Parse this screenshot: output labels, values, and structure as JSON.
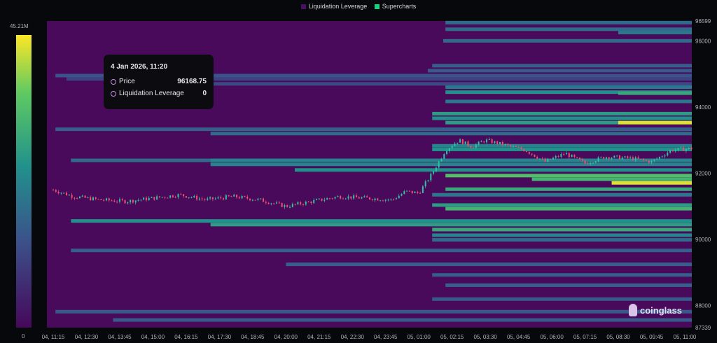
{
  "legend": [
    {
      "label": "Liquidation Leverage",
      "color": "#4a1066"
    },
    {
      "label": "Supercharts",
      "color": "#17d17e"
    }
  ],
  "colorbar": {
    "max_label": "45.21M",
    "min_label": "0",
    "colors": [
      "#46085a",
      "#3b528b",
      "#21918c",
      "#5ec962",
      "#fde725"
    ]
  },
  "tooltip": {
    "title": "4 Jan 2026, 11:20",
    "rows": [
      {
        "label": "Price",
        "value": "96168.75"
      },
      {
        "label": "Liquidation Leverage",
        "value": "0"
      }
    ]
  },
  "brand": "coinglass",
  "chart_data": {
    "type": "heatmap",
    "background_color": "#4a0a5c",
    "x_ticks": [
      "04, 11:15",
      "04, 12:30",
      "04, 13:45",
      "04, 15:00",
      "04, 16:15",
      "04, 17:30",
      "04, 18:45",
      "04, 20:00",
      "04, 21:15",
      "04, 22:30",
      "04, 23:45",
      "05, 01:00",
      "05, 02:15",
      "05, 03:30",
      "05, 04:45",
      "05, 06:00",
      "05, 07:15",
      "05, 08:30",
      "05, 09:45",
      "05, 11:00"
    ],
    "y_ticks": [
      "96599",
      "96000",
      "94000",
      "92000",
      "90000",
      "88000",
      "87339"
    ],
    "ylim": [
      87339,
      96599
    ],
    "xlim": [
      "04, 11:00",
      "05, 11:15"
    ],
    "bands": [
      {
        "price": 96550,
        "from": "05, 02:00",
        "level": 0.35
      },
      {
        "price": 96350,
        "from": "05, 02:00",
        "level": 0.35
      },
      {
        "price": 96250,
        "from": "05, 08:30",
        "level": 0.4
      },
      {
        "price": 96000,
        "from": "05, 01:55",
        "level": 0.35
      },
      {
        "price": 95250,
        "from": "05, 01:30",
        "level": 0.3
      },
      {
        "price": 95100,
        "from": "05, 01:20",
        "level": 0.28
      },
      {
        "price": 94950,
        "from": "04, 11:20",
        "level": 0.25
      },
      {
        "price": 94850,
        "from": "04, 11:45",
        "level": 0.2
      },
      {
        "price": 94700,
        "from": "04, 14:45",
        "level": 0.22
      },
      {
        "price": 94600,
        "from": "05, 02:00",
        "level": 0.4
      },
      {
        "price": 94450,
        "from": "05, 02:00",
        "level": 0.5
      },
      {
        "price": 94420,
        "from": "05, 08:30",
        "level": 0.6
      },
      {
        "price": 94170,
        "from": "05, 02:00",
        "level": 0.4
      },
      {
        "price": 93800,
        "from": "05, 01:30",
        "level": 0.55
      },
      {
        "price": 93660,
        "from": "05, 01:30",
        "level": 0.5
      },
      {
        "price": 93530,
        "from": "05, 02:00",
        "level": 0.55
      },
      {
        "price": 93530,
        "from": "05, 08:30",
        "level": 0.95
      },
      {
        "price": 93330,
        "from": "04, 11:20",
        "level": 0.3
      },
      {
        "price": 93200,
        "from": "04, 17:10",
        "level": 0.35
      },
      {
        "price": 92830,
        "from": "05, 01:30",
        "level": 0.45
      },
      {
        "price": 92720,
        "from": "05, 01:30",
        "level": 0.5
      },
      {
        "price": 92390,
        "from": "04, 11:55",
        "level": 0.35
      },
      {
        "price": 92390,
        "from": "04, 17:10",
        "level": 0.45
      },
      {
        "price": 92270,
        "from": "04, 17:10",
        "level": 0.45
      },
      {
        "price": 92100,
        "from": "04, 20:20",
        "level": 0.5
      },
      {
        "price": 91930,
        "from": "05, 02:00",
        "level": 0.7
      },
      {
        "price": 91820,
        "from": "05, 05:15",
        "level": 0.65
      },
      {
        "price": 91710,
        "from": "05, 08:15",
        "level": 0.95
      },
      {
        "price": 91520,
        "from": "05, 02:00",
        "level": 0.6
      },
      {
        "price": 91350,
        "from": "05, 01:30",
        "level": 0.4
      },
      {
        "price": 91040,
        "from": "05, 01:30",
        "level": 0.55
      },
      {
        "price": 90930,
        "from": "05, 02:00",
        "level": 0.65
      },
      {
        "price": 90560,
        "from": "04, 11:55",
        "level": 0.5
      },
      {
        "price": 90450,
        "from": "04, 17:10",
        "level": 0.55
      },
      {
        "price": 90300,
        "from": "05, 01:30",
        "level": 0.6
      },
      {
        "price": 90130,
        "from": "05, 01:30",
        "level": 0.45
      },
      {
        "price": 89990,
        "from": "05, 01:30",
        "level": 0.35
      },
      {
        "price": 89670,
        "from": "04, 11:55",
        "level": 0.3
      },
      {
        "price": 89250,
        "from": "04, 20:00",
        "level": 0.3
      },
      {
        "price": 88930,
        "from": "05, 01:30",
        "level": 0.3
      },
      {
        "price": 88620,
        "from": "05, 02:00",
        "level": 0.3
      },
      {
        "price": 88200,
        "from": "05, 01:30",
        "level": 0.28
      },
      {
        "price": 87820,
        "from": "04, 11:20",
        "level": 0.28
      },
      {
        "price": 87570,
        "from": "04, 13:30",
        "level": 0.28
      }
    ],
    "price_series": [
      [
        "04, 11:15",
        91500
      ],
      [
        "04, 12:00",
        91300
      ],
      [
        "04, 13:00",
        91200
      ],
      [
        "04, 14:00",
        91150
      ],
      [
        "04, 15:00",
        91250
      ],
      [
        "04, 16:00",
        91350
      ],
      [
        "04, 17:00",
        91200
      ],
      [
        "04, 18:00",
        91300
      ],
      [
        "04, 19:00",
        91200
      ],
      [
        "04, 20:00",
        91000
      ],
      [
        "04, 21:00",
        91150
      ],
      [
        "04, 22:00",
        91300
      ],
      [
        "04, 23:00",
        91250
      ],
      [
        "05, 00:00",
        91200
      ],
      [
        "05, 00:30",
        91450
      ],
      [
        "05, 01:00",
        91400
      ],
      [
        "05, 01:30",
        92000
      ],
      [
        "05, 02:00",
        92700
      ],
      [
        "05, 02:30",
        93000
      ],
      [
        "05, 03:00",
        92800
      ],
      [
        "05, 03:30",
        93000
      ],
      [
        "05, 04:00",
        92900
      ],
      [
        "05, 05:00",
        92700
      ],
      [
        "05, 05:45",
        92350
      ],
      [
        "05, 06:30",
        92600
      ],
      [
        "05, 07:15",
        92300
      ],
      [
        "05, 08:00",
        92500
      ],
      [
        "05, 09:00",
        92450
      ],
      [
        "05, 09:45",
        92350
      ],
      [
        "05, 10:30",
        92700
      ],
      [
        "05, 11:15",
        92750
      ]
    ]
  }
}
